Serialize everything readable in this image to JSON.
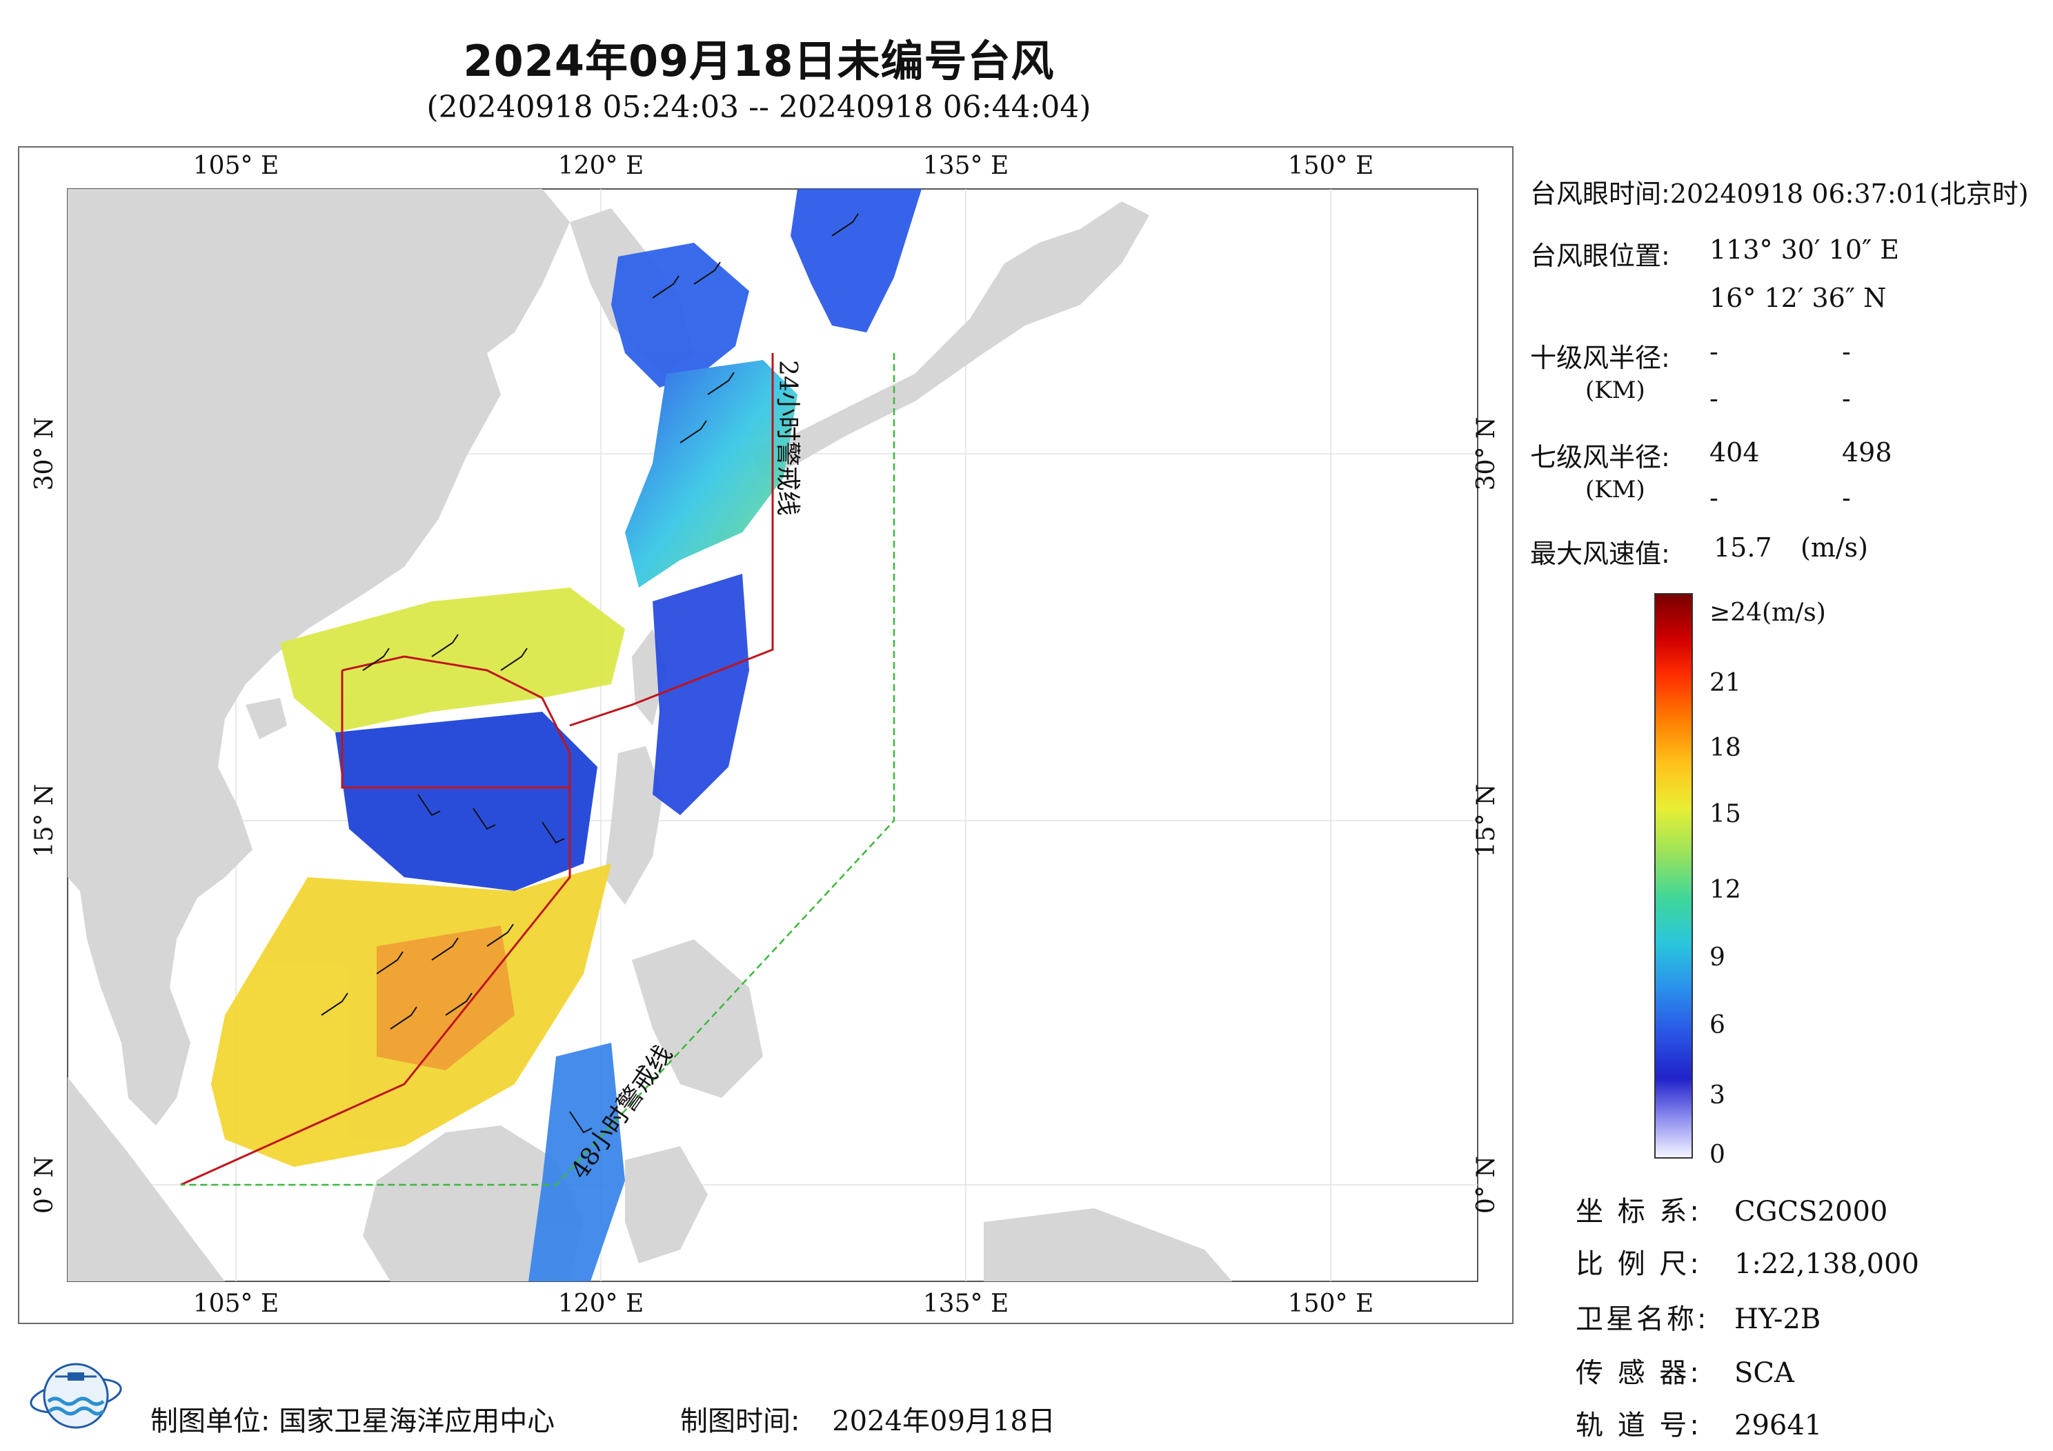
{
  "title": "2024年09月18日未编号台风",
  "subtitle": "(20240918 05:24:03 -- 20240918 06:44:04)",
  "map": {
    "top_ticks": [
      "105° E",
      "120° E",
      "135° E",
      "150° E"
    ],
    "bottom_ticks": [
      "105° E",
      "120° E",
      "135° E",
      "150° E"
    ],
    "left_ticks": [
      "30° N",
      "15° N",
      "0° N"
    ],
    "right_ticks": [
      "30° N",
      "15° N",
      "0° N"
    ],
    "line_24h": "24小时警戒线",
    "line_48h": "48小时警戒线",
    "colors": {
      "land": "#d6d6d6",
      "sea": "#ffffff",
      "warning_24h": "#c0141c",
      "warning_48h": "#3cb83c",
      "wind_barb": "#111111"
    }
  },
  "panel": {
    "eye_time_label": "台风眼时间:",
    "eye_time_value": "20240918 06:37:01(北京时)",
    "eye_pos_label": "台风眼位置:",
    "eye_lon": "113° 30′ 10″ E",
    "eye_lat": "16° 12′ 36″ N",
    "r10_label": "十级风半径:",
    "r10_unit": "(KM)",
    "r10_values": [
      "-",
      "-",
      "-",
      "-"
    ],
    "r7_label": "七级风半径:",
    "r7_unit": "(KM)",
    "r7_values": [
      "404",
      "498",
      "-",
      "-"
    ],
    "maxwind_label": "最大风速值:",
    "maxwind_value": "15.7",
    "maxwind_unit": "(m/s)"
  },
  "colorbar": {
    "top_label": "≥24(m/s)",
    "ticks": [
      "21",
      "18",
      "15",
      "12",
      "9",
      "6",
      "3",
      "0"
    ]
  },
  "info": {
    "crs_label": "坐 标 系:",
    "crs_value": "CGCS2000",
    "scale_label": "比 例 尺:",
    "scale_value": "1:22,138,000",
    "sat_label": "卫星名称:",
    "sat_value": "HY-2B",
    "sensor_label": "传 感 器:",
    "sensor_value": "SCA",
    "orbit_label": "轨 道 号:",
    "orbit_value": "29641"
  },
  "footer": {
    "org_label": "制图单位:",
    "org_value": "国家卫星海洋应用中心",
    "date_label": "制图时间:",
    "date_value": "2024年09月18日"
  }
}
